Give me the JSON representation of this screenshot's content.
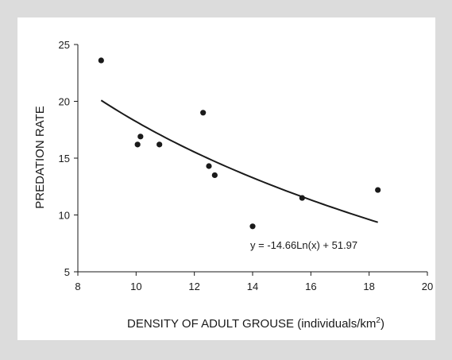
{
  "chart_data": {
    "type": "scatter",
    "xlabel": "DENSITY OF ADULT GROUSE (individuals/km",
    "xlabel_superscript": "2",
    "xlabel_suffix": ")",
    "ylabel": "PREDATION RATE",
    "xlim": [
      8,
      20
    ],
    "ylim": [
      5,
      25
    ],
    "x_ticks": [
      "8",
      "10",
      "12",
      "14",
      "16",
      "18",
      "20"
    ],
    "y_ticks": [
      "5",
      "10",
      "15",
      "20",
      "25"
    ],
    "grid": false,
    "points": [
      {
        "x": 8.8,
        "y": 23.6
      },
      {
        "x": 10.05,
        "y": 16.2
      },
      {
        "x": 10.15,
        "y": 16.9
      },
      {
        "x": 10.8,
        "y": 16.2
      },
      {
        "x": 12.3,
        "y": 19.0
      },
      {
        "x": 12.5,
        "y": 14.3
      },
      {
        "x": 12.7,
        "y": 13.5
      },
      {
        "x": 14.0,
        "y": 9.0
      },
      {
        "x": 15.7,
        "y": 11.5
      },
      {
        "x": 18.3,
        "y": 12.2
      }
    ],
    "trendline": {
      "type": "logarithmic",
      "a": -14.66,
      "b": 51.97,
      "x_range": [
        8.8,
        18.3
      ],
      "equation": "y = -14.66Ln(x) + 51.97"
    },
    "colors": {
      "background": "#dcdcdc",
      "plot_panel": "#ffffff",
      "marks": "#1a1a1a"
    }
  }
}
